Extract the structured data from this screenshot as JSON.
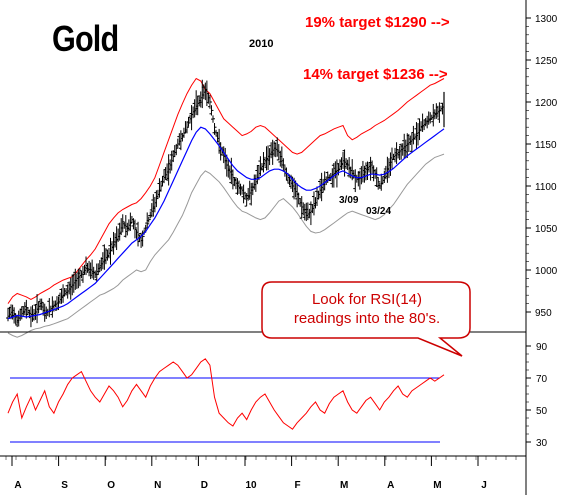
{
  "chart_data": [
    {
      "type": "ohlc",
      "title": "Gold",
      "subtitle": "2010",
      "x_labels": [
        "A",
        "S",
        "O",
        "N",
        "D",
        "10",
        "F",
        "M",
        "A",
        "M",
        "J"
      ],
      "y_ticks": [
        950,
        1000,
        1050,
        1100,
        1150,
        1200,
        1250,
        1300
      ],
      "ylim": [
        920,
        1310
      ],
      "annotations": {
        "target_19": "19% target $1290 -->",
        "target_14": "14% target $1236 -->",
        "date_1": "3/09",
        "date_2": "03/24",
        "callout": [
          "Look for RSI(14)",
          "readings into the 80's."
        ]
      },
      "price_close": [
        945,
        952,
        940,
        948,
        955,
        945,
        950,
        960,
        948,
        952,
        958,
        962,
        970,
        975,
        982,
        990,
        995,
        1002,
        1000,
        995,
        1005,
        1012,
        1020,
        1030,
        1040,
        1055,
        1050,
        1060,
        1045,
        1035,
        1050,
        1065,
        1080,
        1095,
        1110,
        1120,
        1135,
        1150,
        1160,
        1170,
        1185,
        1195,
        1205,
        1215,
        1200,
        1170,
        1150,
        1135,
        1120,
        1110,
        1100,
        1095,
        1085,
        1095,
        1105,
        1120,
        1130,
        1138,
        1145,
        1140,
        1125,
        1110,
        1100,
        1090,
        1075,
        1065,
        1070,
        1080,
        1095,
        1105,
        1110,
        1115,
        1120,
        1130,
        1125,
        1115,
        1108,
        1110,
        1120,
        1125,
        1115,
        1100,
        1110,
        1125,
        1135,
        1140,
        1145,
        1150,
        1155,
        1160,
        1170,
        1175,
        1180,
        1185,
        1190,
        1196
      ],
      "bb_upper": [
        960,
        968,
        972,
        970,
        968,
        965,
        968,
        972,
        975,
        978,
        982,
        985,
        988,
        990,
        992,
        998,
        1005,
        1012,
        1018,
        1025,
        1035,
        1045,
        1055,
        1062,
        1068,
        1072,
        1075,
        1078,
        1080,
        1085,
        1092,
        1100,
        1110,
        1125,
        1140,
        1155,
        1170,
        1185,
        1198,
        1210,
        1220,
        1228,
        1225,
        1215,
        1210,
        1200,
        1190,
        1180,
        1175,
        1170,
        1165,
        1160,
        1162,
        1165,
        1170,
        1172,
        1170,
        1165,
        1160,
        1155,
        1150,
        1145,
        1140,
        1138,
        1140,
        1145,
        1150,
        1155,
        1160,
        1162,
        1165,
        1168,
        1170,
        1172,
        1160,
        1155,
        1158,
        1162,
        1165,
        1168,
        1172,
        1175,
        1178,
        1182,
        1186,
        1190,
        1195,
        1200,
        1204,
        1208,
        1212,
        1216,
        1220,
        1222,
        1225,
        1228
      ],
      "bb_mid": [
        942,
        944,
        946,
        945,
        944,
        945,
        946,
        947,
        949,
        951,
        953,
        955,
        957,
        960,
        964,
        968,
        972,
        976,
        980,
        984,
        990,
        996,
        1002,
        1008,
        1014,
        1020,
        1026,
        1032,
        1036,
        1040,
        1046,
        1054,
        1062,
        1072,
        1082,
        1094,
        1106,
        1118,
        1130,
        1142,
        1154,
        1164,
        1170,
        1168,
        1162,
        1155,
        1148,
        1140,
        1132,
        1124,
        1118,
        1114,
        1110,
        1108,
        1108,
        1110,
        1114,
        1118,
        1120,
        1120,
        1118,
        1114,
        1108,
        1102,
        1098,
        1095,
        1095,
        1097,
        1100,
        1104,
        1108,
        1112,
        1116,
        1118,
        1115,
        1112,
        1110,
        1110,
        1112,
        1114,
        1114,
        1113,
        1114,
        1117,
        1121,
        1126,
        1131,
        1136,
        1140,
        1144,
        1148,
        1152,
        1156,
        1160,
        1164,
        1168
      ],
      "bb_lower": [
        925,
        922,
        920,
        922,
        925,
        928,
        930,
        931,
        933,
        934,
        936,
        938,
        940,
        942,
        946,
        950,
        954,
        958,
        962,
        966,
        970,
        972,
        975,
        978,
        982,
        988,
        992,
        996,
        1000,
        998,
        1000,
        1010,
        1018,
        1024,
        1030,
        1036,
        1045,
        1055,
        1065,
        1078,
        1092,
        1102,
        1112,
        1118,
        1115,
        1110,
        1105,
        1098,
        1090,
        1082,
        1075,
        1070,
        1068,
        1065,
        1062,
        1060,
        1062,
        1068,
        1075,
        1082,
        1085,
        1080,
        1075,
        1068,
        1060,
        1052,
        1046,
        1044,
        1045,
        1048,
        1052,
        1056,
        1060,
        1064,
        1068,
        1070,
        1068,
        1066,
        1064,
        1062,
        1060,
        1062,
        1066,
        1072,
        1078,
        1086,
        1094,
        1102,
        1108,
        1114,
        1120,
        1126,
        1130,
        1134,
        1136,
        1138
      ]
    },
    {
      "type": "line",
      "name": "RSI(14)",
      "y_ticks": [
        30,
        50,
        70,
        90
      ],
      "ylim": [
        15,
        100
      ],
      "reference_lines": [
        70,
        30
      ],
      "values": [
        48,
        55,
        60,
        45,
        52,
        58,
        50,
        56,
        62,
        52,
        48,
        55,
        60,
        66,
        70,
        72,
        74,
        68,
        62,
        58,
        55,
        60,
        65,
        62,
        58,
        52,
        56,
        62,
        66,
        62,
        58,
        65,
        70,
        74,
        76,
        78,
        80,
        78,
        74,
        70,
        72,
        76,
        80,
        82,
        78,
        58,
        48,
        45,
        42,
        40,
        45,
        48,
        44,
        50,
        55,
        58,
        60,
        55,
        50,
        46,
        42,
        40,
        38,
        42,
        45,
        48,
        52,
        55,
        50,
        48,
        54,
        58,
        60,
        62,
        55,
        50,
        48,
        52,
        56,
        58,
        54,
        50,
        55,
        58,
        62,
        65,
        60,
        58,
        62,
        64,
        66,
        68,
        70,
        68,
        70,
        72
      ]
    }
  ],
  "colors": {
    "bars": "#000000",
    "upper_band": "#ff0000",
    "mid_band": "#0000ff",
    "lower_band": "#999999",
    "rsi_line": "#ff0000",
    "rsi_ref": "#0000ff",
    "target_text": "#ff0000",
    "callout_border": "#cc0000",
    "callout_text": "#cc0000"
  }
}
